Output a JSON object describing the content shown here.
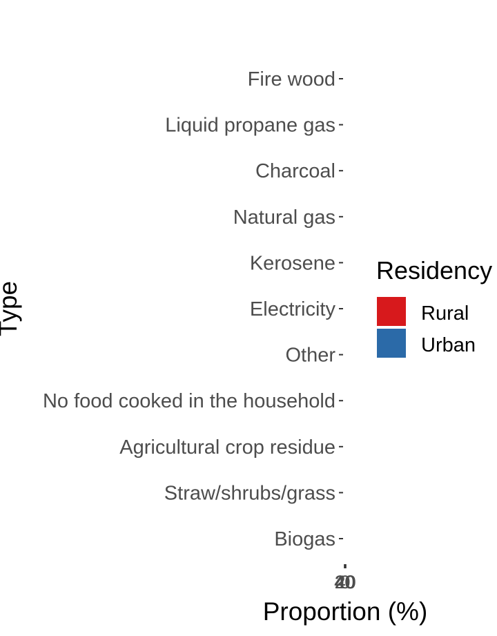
{
  "chart_data": {
    "type": "bar",
    "orientation": "horizontal",
    "title": "",
    "xlabel": "Proportion (%)",
    "ylabel": "Type",
    "categories": [
      "Fire wood",
      "Liquid propane gas",
      "Charcoal",
      "Natural gas",
      "Kerosene",
      "Electricity",
      "Other",
      "No food cooked in the household",
      "Agricultural crop residue",
      "Straw/shrubs/grass",
      "Biogas"
    ],
    "x_ticks": [
      "40",
      "20",
      "0",
      "20",
      "40"
    ],
    "xlim": [
      -40,
      40
    ],
    "grid": false,
    "legend": {
      "title": "Residency",
      "placement": "right"
    },
    "series": [
      {
        "name": "Rural",
        "color": "#D7191C",
        "values": [
          0,
          0,
          0,
          0,
          0,
          0,
          0,
          0,
          0,
          0,
          0
        ]
      },
      {
        "name": "Urban",
        "color": "#2B6AA8",
        "values": [
          0,
          0,
          0,
          0,
          0,
          0,
          0,
          0,
          0,
          0,
          0
        ]
      }
    ]
  }
}
